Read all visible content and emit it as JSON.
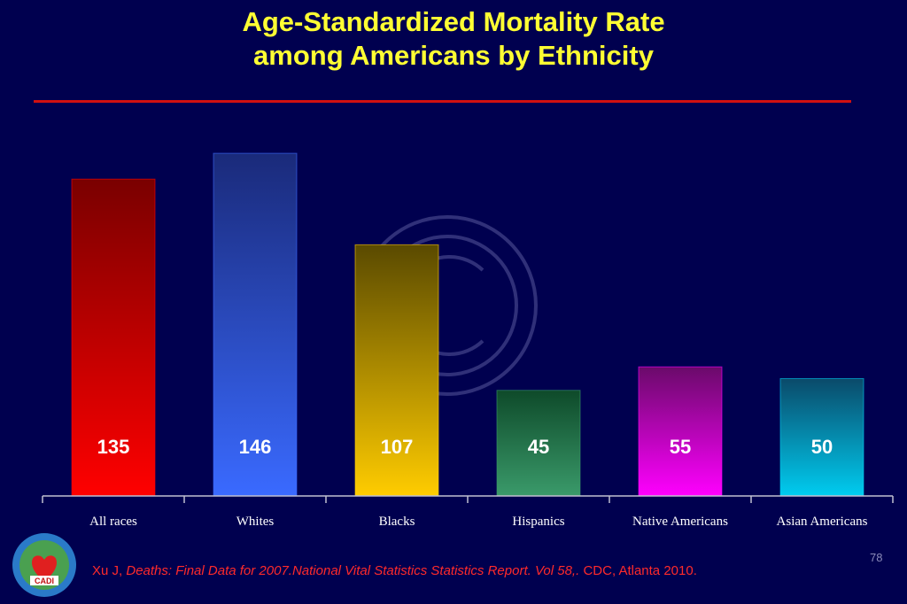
{
  "slide": {
    "title_line1": "Age-Standardized Mortality Rate",
    "title_line2": "among Americans by Ethnicity",
    "citation_author": "Xu J, ",
    "citation_title": "Deaths: Final Data for 2007.National Vital Statistics Statistics Report. Vol 58,.",
    "citation_rest": " CDC, Atlanta 2010.",
    "page_number": "78",
    "logo_text": "CADI"
  },
  "colors": {
    "background": "#00004f",
    "title": "#ffff33",
    "rule": "#d01010",
    "citation": "#ff2a2a"
  },
  "chart_data": {
    "type": "bar",
    "title": "",
    "xlabel": "",
    "ylabel": "",
    "ylim": [
      0,
      160
    ],
    "categories": [
      "All races",
      "Whites",
      "Blacks",
      "Hispanics",
      "Native Americans",
      "Asian Americans"
    ],
    "values": [
      135,
      146,
      107,
      45,
      55,
      50
    ],
    "value_labels": [
      "135",
      "146",
      "107",
      "45",
      "55",
      "50"
    ],
    "bar_colors": [
      {
        "top": "#7a0000",
        "bottom": "#ff0000"
      },
      {
        "top": "#1a2a7a",
        "bottom": "#3a6aff"
      },
      {
        "top": "#5a4a00",
        "bottom": "#ffcc00"
      },
      {
        "top": "#0e4a2a",
        "bottom": "#3a9a6a"
      },
      {
        "top": "#6a0a6a",
        "bottom": "#ff00ff"
      },
      {
        "top": "#0a4a6a",
        "bottom": "#00ccf0"
      }
    ],
    "grid": false,
    "legend": "none"
  }
}
